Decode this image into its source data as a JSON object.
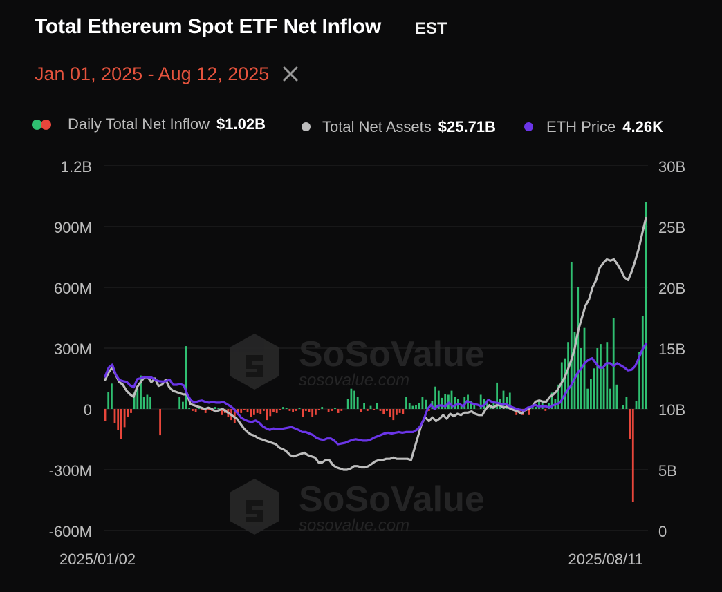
{
  "header": {
    "title": "Total Ethereum Spot ETF Net Inflow",
    "timezone": "EST",
    "date_range": "Jan 01, 2025 - Aug 12, 2025"
  },
  "legend": {
    "inflow": {
      "label": "Daily Total Net Inflow",
      "value": "$1.02B",
      "pos_color": "#2fbf71",
      "neg_color": "#e8463b"
    },
    "assets": {
      "label": "Total Net Assets",
      "value": "$25.71B",
      "color": "#bdbdbd"
    },
    "price": {
      "label": "ETH Price",
      "value": "4.26K",
      "color": "#6b35e8"
    }
  },
  "watermark": {
    "brand": "SoSoValue",
    "url": "sosovalue.com"
  },
  "chart_data": {
    "type": "bar+line",
    "title": "Total Ethereum Spot ETF Net Inflow",
    "y_left": {
      "ticks": [
        "1.2B",
        "900M",
        "600M",
        "300M",
        "0",
        "-300M",
        "-600M"
      ],
      "values": [
        1200,
        900,
        600,
        300,
        0,
        -300,
        -600
      ],
      "unit": "M USD"
    },
    "y_right": {
      "ticks": [
        "30B",
        "25B",
        "20B",
        "15B",
        "10B",
        "5B",
        "0"
      ],
      "values": [
        30,
        25,
        20,
        15,
        10,
        5,
        0
      ],
      "unit": "B USD"
    },
    "x_ticks": [
      "2025/01/02",
      "2025/08/11"
    ],
    "series": [
      {
        "name": "Daily Total Net Inflow",
        "type": "bar",
        "axis": "left",
        "unit": "M USD",
        "values": [
          -60,
          85,
          125,
          -70,
          -105,
          -150,
          -90,
          -40,
          -20,
          80,
          100,
          165,
          60,
          70,
          60,
          0,
          0,
          -130,
          0,
          0,
          0,
          0,
          0,
          60,
          35,
          310,
          5,
          -10,
          -15,
          5,
          -5,
          -20,
          -5,
          -10,
          10,
          5,
          -30,
          -20,
          -40,
          -55,
          -70,
          -30,
          -20,
          -5,
          -15,
          -40,
          -30,
          -20,
          -25,
          -10,
          -55,
          -35,
          -15,
          -20,
          -5,
          10,
          5,
          -10,
          -15,
          -10,
          5,
          -40,
          -10,
          -15,
          -40,
          -30,
          -5,
          10,
          0,
          -15,
          -10,
          5,
          -20,
          -10,
          0,
          50,
          100,
          90,
          60,
          -15,
          30,
          -10,
          15,
          -5,
          30,
          -10,
          -25,
          -10,
          -40,
          -55,
          -30,
          -20,
          -25,
          60,
          30,
          15,
          20,
          30,
          60,
          45,
          -10,
          40,
          110,
          90,
          55,
          75,
          70,
          90,
          60,
          50,
          20,
          60,
          70,
          40,
          30,
          0,
          70,
          50,
          40,
          20,
          30,
          130,
          50,
          90,
          60,
          80,
          10,
          -30,
          -20,
          -30,
          -10,
          -30,
          20,
          10,
          40,
          30,
          -10,
          30,
          80,
          50,
          120,
          230,
          250,
          330,
          725,
          380,
          600,
          300,
          400,
          100,
          150,
          200,
          300,
          320,
          200,
          330,
          100,
          450,
          120,
          0,
          20,
          60,
          -150,
          -460,
          40,
          280,
          460,
          1020
        ]
      },
      {
        "name": "Total Net Assets",
        "type": "line",
        "axis": "right",
        "unit": "B USD",
        "values": [
          12.4,
          13,
          13.4,
          12.8,
          12.2,
          12,
          11.5,
          11.2,
          11,
          11.8,
          12.2,
          12.6,
          12.6,
          12.2,
          12.5,
          11.9,
          12,
          12.4,
          11.8,
          11.5,
          11.4,
          11.3,
          11.2,
          11.2,
          10.4,
          10.3,
          10.2,
          10.1,
          10,
          10.1,
          10,
          9.8,
          9.9,
          10,
          9.8,
          9.6,
          9.4,
          9.2,
          8.8,
          8.4,
          8.1,
          7.9,
          7.8,
          7.6,
          7.5,
          7.4,
          7.3,
          7.2,
          7.1,
          6.8,
          6.7,
          6.5,
          6.2,
          6.1,
          6.2,
          6.3,
          6.4,
          6.2,
          6.1,
          6.0,
          5.6,
          5.6,
          5.8,
          5.8,
          5.4,
          5.2,
          5.1,
          5.0,
          5.0,
          5.1,
          5.3,
          5.3,
          5.2,
          5.2,
          5.3,
          5.5,
          5.7,
          5.8,
          5.8,
          5.9,
          5.9,
          6.0,
          5.9,
          5.9,
          5.9,
          5.9,
          5.8,
          6.8,
          7.8,
          8.8,
          9.3,
          9.0,
          9.3,
          9.0,
          9.2,
          9.5,
          9.2,
          9.6,
          9.4,
          9.6,
          9.5,
          9.7,
          9.7,
          9.8,
          9.6,
          9.5,
          9.5,
          10.0,
          10.3,
          10.1,
          10.3,
          10.3,
          10.1,
          10.2,
          10.0,
          9.9,
          9.8,
          9.6,
          9.9,
          10.0,
          10.2,
          10.6,
          10.7,
          10.6,
          10.6,
          11.0,
          11.2,
          11.5,
          12.0,
          12.5,
          13.2,
          14.0,
          15.0,
          16.5,
          17.5,
          18.5,
          19.0,
          20.0,
          20.6,
          21.6,
          22.0,
          22.3,
          22.2,
          22.3,
          21.9,
          21.4,
          20.8,
          20.6,
          21.3,
          22.2,
          23.2,
          24.5,
          25.71
        ]
      },
      {
        "name": "ETH Price",
        "type": "line",
        "axis": "right",
        "unit": "USD",
        "values": [
          3350,
          3600,
          3680,
          3400,
          3250,
          3220,
          3200,
          3100,
          3050,
          3280,
          3300,
          3340,
          3330,
          3320,
          3260,
          3220,
          3210,
          3220,
          3260,
          3120,
          3120,
          3140,
          3100,
          2840,
          2680,
          2620,
          2660,
          2680,
          2640,
          2620,
          2640,
          2620,
          2620,
          2640,
          2580,
          2520,
          2440,
          2320,
          2200,
          2140,
          2100,
          2080,
          2120,
          2060,
          1960,
          1900,
          1860,
          1900,
          1880,
          1880,
          1900,
          1920,
          1940,
          1900,
          1860,
          1800,
          1800,
          1760,
          1720,
          1640,
          1600,
          1580,
          1620,
          1620,
          1560,
          1460,
          1480,
          1500,
          1540,
          1580,
          1600,
          1580,
          1560,
          1560,
          1580,
          1640,
          1680,
          1720,
          1760,
          1780,
          1760,
          1780,
          1800,
          1780,
          1800,
          1800,
          1800,
          1860,
          1960,
          2160,
          2440,
          2560,
          2440,
          2540,
          2540,
          2520,
          2620,
          2520,
          2560,
          2580,
          2520,
          2660,
          2620,
          2580,
          2560,
          2520,
          2560,
          2700,
          2640,
          2620,
          2600,
          2560,
          2580,
          2520,
          2480,
          2440,
          2420,
          2400,
          2480,
          2500,
          2560,
          2520,
          2520,
          2520,
          2480,
          2540,
          2580,
          2620,
          2780,
          2960,
          3080,
          3280,
          3460,
          3580,
          3740,
          3820,
          3860,
          3720,
          3600,
          3600,
          3720,
          3720,
          3640,
          3720,
          3660,
          3600,
          3520,
          3540,
          3640,
          3860,
          4100,
          4260
        ]
      }
    ],
    "legend_position": "top",
    "grid": true
  }
}
